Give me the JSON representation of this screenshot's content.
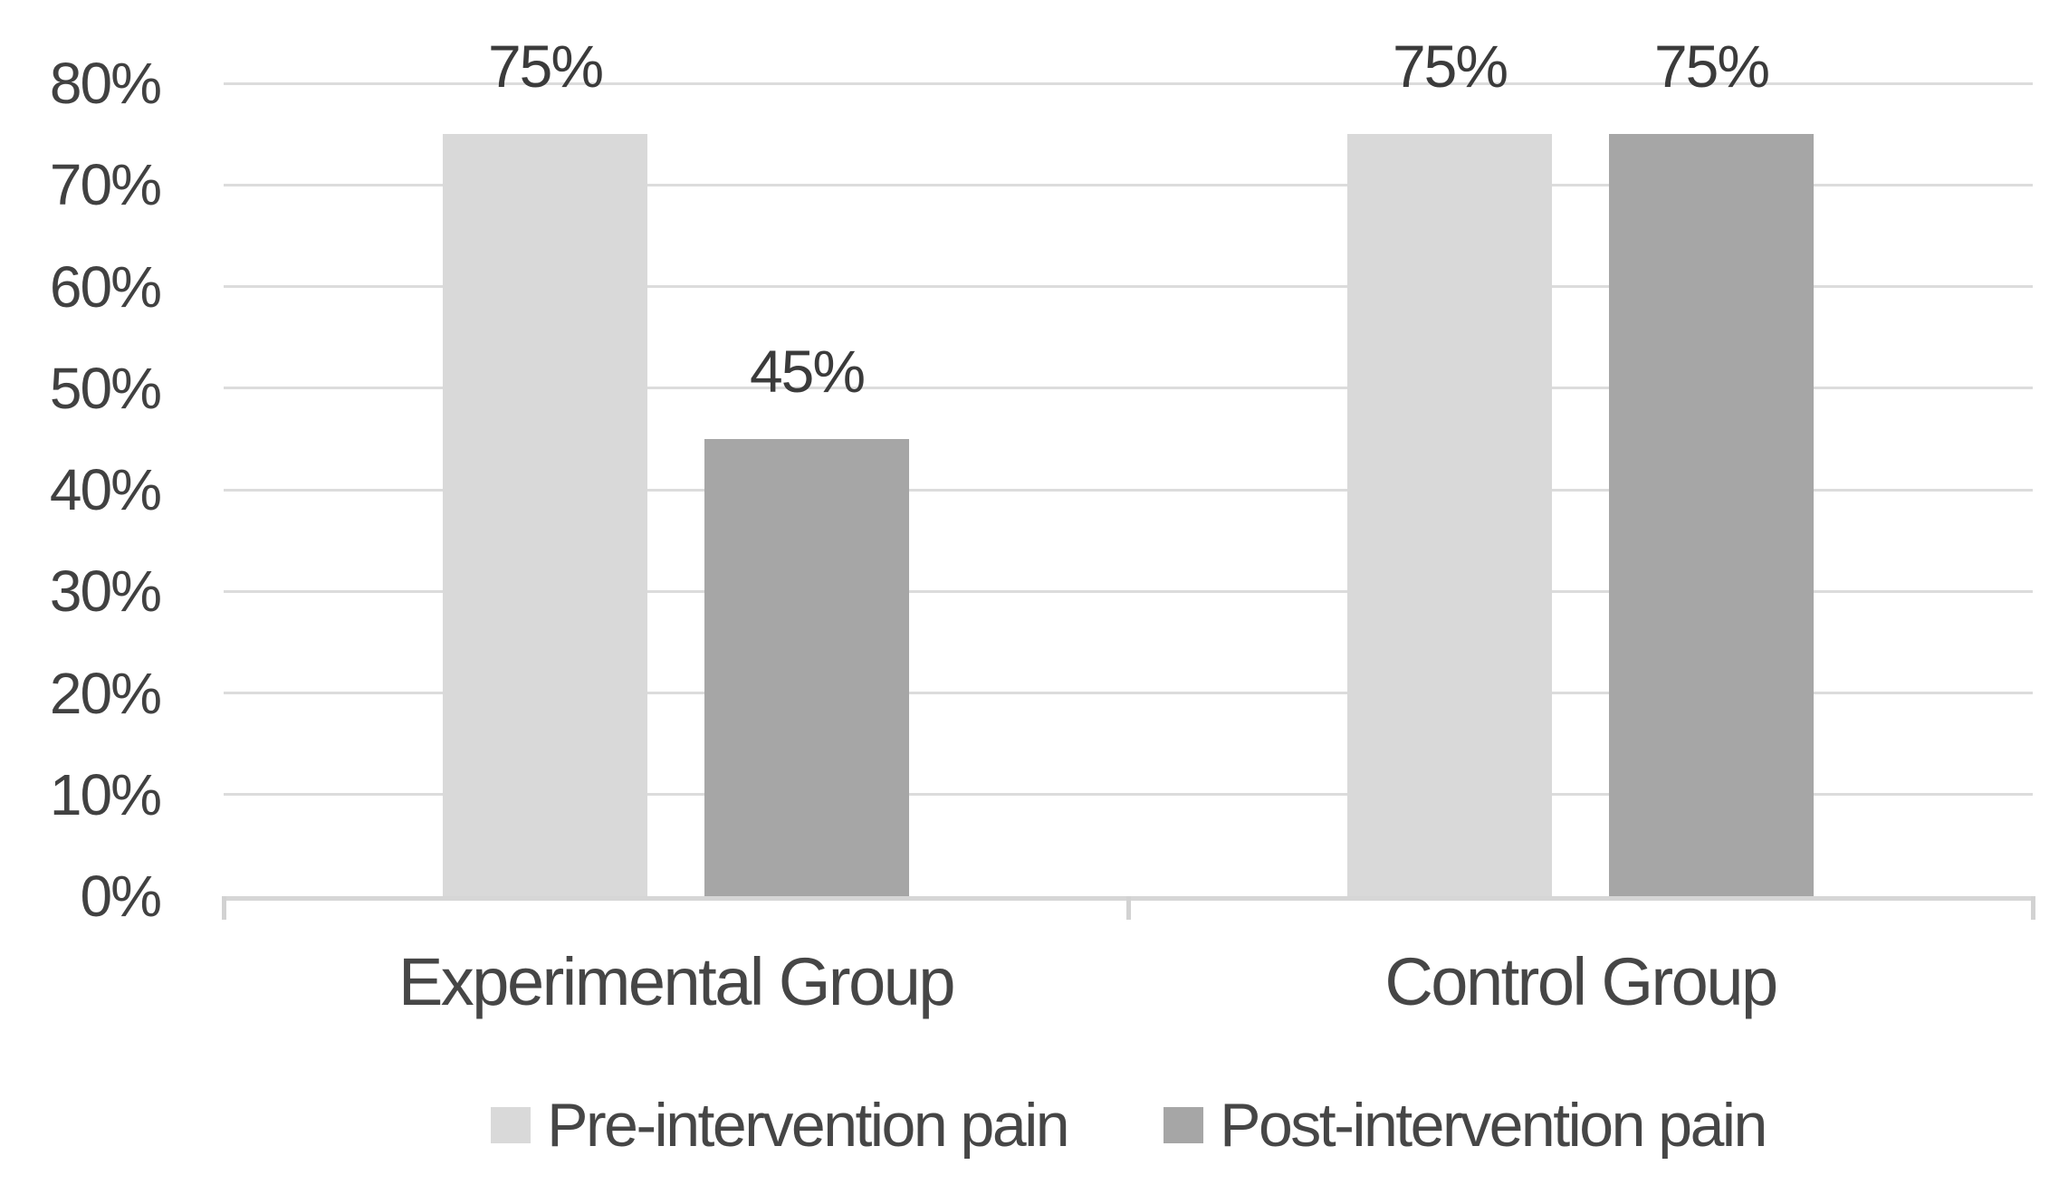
{
  "chart_data": {
    "type": "bar",
    "title": "",
    "xlabel": "",
    "ylabel": "",
    "categories": [
      "Experimental Group",
      "Control Group"
    ],
    "series": [
      {
        "name": "Pre-intervention pain",
        "color": "#d9d9d9",
        "values": [
          75,
          75
        ],
        "data_labels": [
          "75%",
          "75%"
        ]
      },
      {
        "name": "Post-intervention pain",
        "color": "#a6a6a6",
        "values": [
          45,
          75
        ],
        "data_labels": [
          "45%",
          "75%"
        ]
      }
    ],
    "ylim": [
      0,
      80
    ],
    "ytick_step": 10,
    "ytick_labels": [
      "0%",
      "10%",
      "20%",
      "30%",
      "40%",
      "50%",
      "60%",
      "70%",
      "80%"
    ],
    "grid": true,
    "legend_position": "bottom",
    "colors": {
      "background": "#ffffff",
      "gridline": "#dcdcdc",
      "axis_line": "#d6d6d6",
      "text": "#414141"
    }
  }
}
